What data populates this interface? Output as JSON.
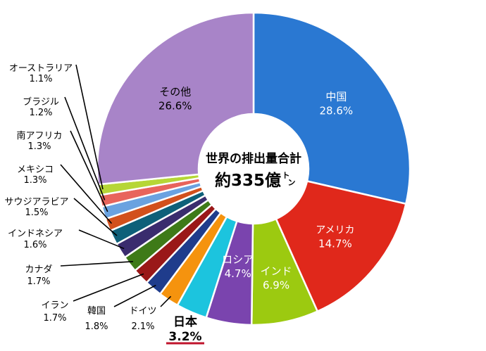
{
  "chart_data": {
    "type": "pie",
    "variant": "donut",
    "start_angle_deg": 0,
    "direction": "clockwise",
    "center_label": {
      "line1": "世界の排出量合計",
      "line2": "約335億",
      "unit": "トン"
    },
    "slices": [
      {
        "key": "china",
        "label": "中国",
        "value": 28.6,
        "value_text": "28.6%",
        "color": "#2A78D2",
        "label_style": "inside"
      },
      {
        "key": "usa",
        "label": "アメリカ",
        "value": 14.7,
        "value_text": "14.7%",
        "color": "#E0281B",
        "label_style": "inside"
      },
      {
        "key": "india",
        "label": "インド",
        "value": 6.9,
        "value_text": "6.9%",
        "color": "#9CCA10",
        "label_style": "inside"
      },
      {
        "key": "russia",
        "label": "ロシア",
        "value": 4.7,
        "value_text": "4.7%",
        "color": "#7A44AE",
        "label_style": "inside"
      },
      {
        "key": "japan",
        "label": "日本",
        "value": 3.2,
        "value_text": "3.2%",
        "color": "#1CC4DE",
        "label_style": "emphasis"
      },
      {
        "key": "germany",
        "label": "ドイツ",
        "value": 2.1,
        "value_text": "2.1%",
        "color": "#F5930E",
        "label_style": "outside"
      },
      {
        "key": "korea",
        "label": "韓国",
        "value": 1.8,
        "value_text": "1.8%",
        "color": "#1F3C8C",
        "label_style": "outside"
      },
      {
        "key": "iran",
        "label": "イラン",
        "value": 1.7,
        "value_text": "1.7%",
        "color": "#9A1818",
        "label_style": "outside"
      },
      {
        "key": "canada",
        "label": "カナダ",
        "value": 1.7,
        "value_text": "1.7%",
        "color": "#3E7A18",
        "label_style": "outside"
      },
      {
        "key": "indonesia",
        "label": "インドネシア",
        "value": 1.6,
        "value_text": "1.6%",
        "color": "#3A2C6E",
        "label_style": "outside"
      },
      {
        "key": "saudi",
        "label": "サウジアラビア",
        "value": 1.5,
        "value_text": "1.5%",
        "color": "#0E6079",
        "label_style": "outside"
      },
      {
        "key": "mexico",
        "label": "メキシコ",
        "value": 1.3,
        "value_text": "1.3%",
        "color": "#D2501C",
        "label_style": "outside"
      },
      {
        "key": "southafrica",
        "label": "南アフリカ",
        "value": 1.3,
        "value_text": "1.3%",
        "color": "#6AA2E0",
        "label_style": "outside"
      },
      {
        "key": "brazil",
        "label": "ブラジル",
        "value": 1.2,
        "value_text": "1.2%",
        "color": "#E8645C",
        "label_style": "outside"
      },
      {
        "key": "australia",
        "label": "オーストラリア",
        "value": 1.1,
        "value_text": "1.1%",
        "color": "#B6D636",
        "label_style": "outside"
      },
      {
        "key": "other",
        "label": "その他",
        "value": 26.6,
        "value_text": "26.6%",
        "color": "#A884C8",
        "label_style": "inside"
      }
    ]
  }
}
